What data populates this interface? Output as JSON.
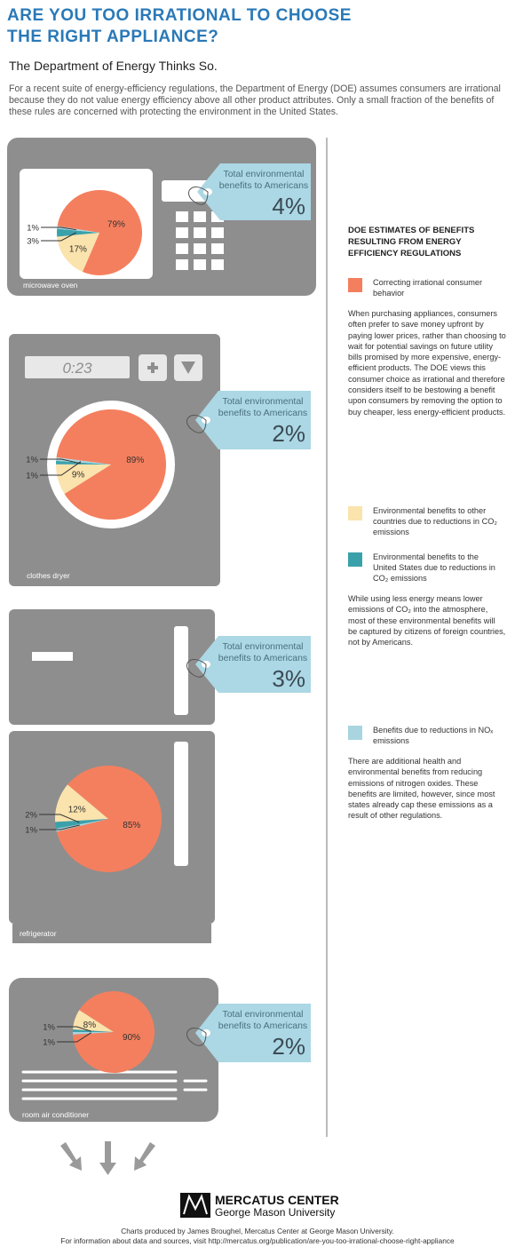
{
  "header": {
    "title": "ARE YOU TOO IRRATIONAL TO CHOOSE THE RIGHT APPLIANCE?",
    "subtitle": "The Department of Energy Thinks So.",
    "intro": "For a recent suite of energy-efficiency regulations, the Department of Energy (DOE) assumes consumers are irrational because they do not value energy efficiency above all other product attributes. Only a small fraction of the benefits of these rules are concerned with protecting the environment in the United States."
  },
  "chart_data": [
    {
      "type": "pie",
      "label": "microwave oven",
      "values": [
        79,
        17,
        3,
        1
      ],
      "value_labels": [
        "79%",
        "17%",
        "3%",
        "1%"
      ],
      "colors": [
        "#f47f5e",
        "#fbe3ad",
        "#3aa1ab",
        "#a8d5df"
      ],
      "annotation": "Total environmental benefits to Americans",
      "total": {
        "value": 4,
        "label": "4%"
      }
    },
    {
      "type": "pie",
      "label": "clothes dryer",
      "display": "0:23",
      "values": [
        89,
        9,
        1,
        1
      ],
      "value_labels": [
        "89%",
        "9%",
        "1%",
        "1%"
      ],
      "colors": [
        "#f47f5e",
        "#fbe3ad",
        "#3aa1ab",
        "#a8d5df"
      ],
      "annotation": "Total environmental benefits to Americans",
      "total": {
        "value": 2,
        "label": "2%"
      }
    },
    {
      "type": "pie",
      "label": "refrigerator",
      "values": [
        85,
        12,
        2,
        1
      ],
      "value_labels": [
        "85%",
        "12%",
        "2%",
        "1%"
      ],
      "colors": [
        "#f47f5e",
        "#fbe3ad",
        "#3aa1ab",
        "#a8d5df"
      ],
      "annotation": "Total environmental benefits to Americans",
      "total": {
        "value": 3,
        "label": "3%"
      }
    },
    {
      "type": "pie",
      "label": "room air conditioner",
      "values": [
        90,
        8,
        1,
        1
      ],
      "value_labels": [
        "90%",
        "8%",
        "1%",
        "1%"
      ],
      "colors": [
        "#f47f5e",
        "#fbe3ad",
        "#3aa1ab",
        "#a8d5df"
      ],
      "annotation": "Total environmental benefits to Americans",
      "total": {
        "value": 2,
        "label": "2%"
      }
    }
  ],
  "legend": {
    "heading": "DOE ESTIMATES OF BENEFITS RESULTING FROM ENERGY EFFICIENCY REGULATIONS",
    "items": [
      {
        "name": "Correcting irrational consumer behavior",
        "color": "#f47f5e",
        "note": "When purchasing appliances, consumers often prefer to save money upfront by paying lower prices, rather than choosing to wait for potential savings on future utility bills promised by more expensive, energy-efficient products. The DOE views this consumer choice as irrational and therefore considers itself to be bestowing a benefit upon consumers by removing the option to buy cheaper, less energy-efficient products."
      },
      {
        "name": "Environmental benefits to other countries due to reductions in CO₂ emissions",
        "color": "#fbe3ad"
      },
      {
        "name": "Environmental benefits to the United States due to reductions in CO₂ emissions",
        "color": "#3aa1ab",
        "note": "While using less energy means lower emissions of CO₂ into the atmosphere, most of these environmental benefits will be captured by citizens of foreign countries, not by Americans."
      },
      {
        "name": "Benefits due to reductions in NOₓ emissions",
        "color": "#a8d5df",
        "note": "There are additional health and environmental benefits from reducing emissions of nitrogen oxides. These benefits are limited, however, since most states already cap these emissions as a result of other regulations."
      }
    ]
  },
  "footer": {
    "org": "MERCATUS CENTER",
    "university": "George Mason University",
    "credit": "Charts produced by James Broughel, Mercatus Center at George Mason University.",
    "source": "For information about data and sources, visit http://mercatus.org/publication/are-you-too-irrational-choose-right-appliance"
  }
}
